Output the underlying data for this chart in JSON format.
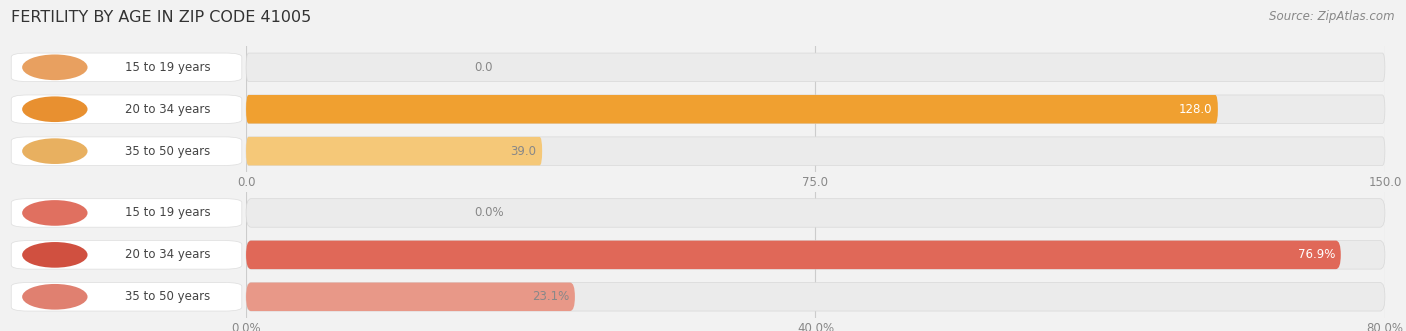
{
  "title": "FERTILITY BY AGE IN ZIP CODE 41005",
  "source": "Source: ZipAtlas.com",
  "background_color": "#f2f2f2",
  "top_chart": {
    "categories": [
      "15 to 19 years",
      "20 to 34 years",
      "35 to 50 years"
    ],
    "values": [
      0.0,
      128.0,
      39.0
    ],
    "xlim": [
      0,
      150.0
    ],
    "xticks": [
      0.0,
      75.0,
      150.0
    ],
    "bar_color": [
      "#f5c9a0",
      "#f0a030",
      "#f5c878"
    ],
    "track_color": "#ebebeb",
    "value_labels": [
      "0.0",
      "128.0",
      "39.0"
    ],
    "value_label_color": [
      "#999999",
      "#ffffff",
      "#888888"
    ]
  },
  "bottom_chart": {
    "categories": [
      "15 to 19 years",
      "20 to 34 years",
      "35 to 50 years"
    ],
    "values": [
      0.0,
      76.9,
      23.1
    ],
    "xlim": [
      0,
      80.0
    ],
    "xticks": [
      0.0,
      40.0,
      80.0
    ],
    "xtick_labels": [
      "0.0%",
      "40.0%",
      "80.0%"
    ],
    "bar_color": [
      "#f0b8a8",
      "#e06858",
      "#e89888"
    ],
    "track_color": "#ebebeb",
    "value_labels": [
      "0.0%",
      "76.9%",
      "23.1%"
    ],
    "value_label_color": [
      "#999999",
      "#ffffff",
      "#888888"
    ]
  }
}
